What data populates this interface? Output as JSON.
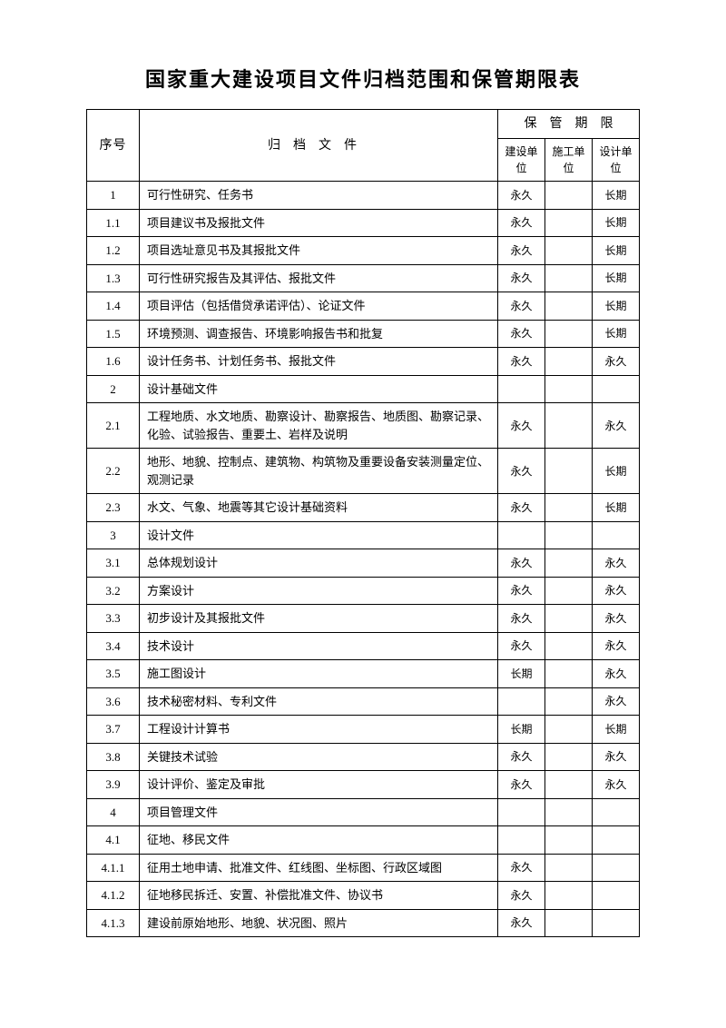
{
  "title": "国家重大建设项目文件归档范围和保管期限表",
  "header": {
    "seq": "序号",
    "doc": "归档文件",
    "period": "保　管　期　限",
    "unit1": "建设单位",
    "unit2": "施工单位",
    "unit3": "设计单位"
  },
  "rows": [
    {
      "seq": "1",
      "doc": "可行性研究、任务书",
      "p1": "永久",
      "p2": "",
      "p3": "长期"
    },
    {
      "seq": "1.1",
      "doc": "项目建议书及报批文件",
      "p1": "永久",
      "p2": "",
      "p3": "长期"
    },
    {
      "seq": "1.2",
      "doc": "项目选址意见书及其报批文件",
      "p1": "永久",
      "p2": "",
      "p3": "长期"
    },
    {
      "seq": "1.3",
      "doc": "可行性研究报告及其评估、报批文件",
      "p1": "永久",
      "p2": "",
      "p3": "长期"
    },
    {
      "seq": "1.4",
      "doc": "项目评估（包括借贷承诺评估）、论证文件",
      "p1": "永久",
      "p2": "",
      "p3": "长期"
    },
    {
      "seq": "1.5",
      "doc": "环境预测、调查报告、环境影响报告书和批复",
      "p1": "永久",
      "p2": "",
      "p3": "长期"
    },
    {
      "seq": "1.6",
      "doc": "设计任务书、计划任务书、报批文件",
      "p1": "永久",
      "p2": "",
      "p3": "永久"
    },
    {
      "seq": "2",
      "doc": "设计基础文件",
      "p1": "",
      "p2": "",
      "p3": ""
    },
    {
      "seq": "2.1",
      "doc": "工程地质、水文地质、勘察设计、勘察报告、地质图、勘察记录、化验、试验报告、重要土、岩样及说明",
      "p1": "永久",
      "p2": "",
      "p3": "永久"
    },
    {
      "seq": "2.2",
      "doc": "地形、地貌、控制点、建筑物、构筑物及重要设备安装测量定位、观测记录",
      "p1": "永久",
      "p2": "",
      "p3": "长期"
    },
    {
      "seq": "2.3",
      "doc": "水文、气象、地震等其它设计基础资料",
      "p1": "永久",
      "p2": "",
      "p3": "长期"
    },
    {
      "seq": "3",
      "doc": "设计文件",
      "p1": "",
      "p2": "",
      "p3": ""
    },
    {
      "seq": "3.1",
      "doc": "总体规划设计",
      "p1": "永久",
      "p2": "",
      "p3": "永久"
    },
    {
      "seq": "3.2",
      "doc": "方案设计",
      "p1": "永久",
      "p2": "",
      "p3": "永久"
    },
    {
      "seq": "3.3",
      "doc": "初步设计及其报批文件",
      "p1": "永久",
      "p2": "",
      "p3": "永久"
    },
    {
      "seq": "3.4",
      "doc": "技术设计",
      "p1": "永久",
      "p2": "",
      "p3": "永久"
    },
    {
      "seq": "3.5",
      "doc": "施工图设计",
      "p1": "长期",
      "p2": "",
      "p3": "永久"
    },
    {
      "seq": "3.6",
      "doc": "技术秘密材料、专利文件",
      "p1": "",
      "p2": "",
      "p3": "永久"
    },
    {
      "seq": "3.7",
      "doc": "工程设计计算书",
      "p1": "长期",
      "p2": "",
      "p3": "长期"
    },
    {
      "seq": "3.8",
      "doc": "关键技术试验",
      "p1": "永久",
      "p2": "",
      "p3": "永久"
    },
    {
      "seq": "3.9",
      "doc": "设计评价、鉴定及审批",
      "p1": "永久",
      "p2": "",
      "p3": "永久"
    },
    {
      "seq": "4",
      "doc": "项目管理文件",
      "p1": "",
      "p2": "",
      "p3": ""
    },
    {
      "seq": "4.1",
      "doc": "征地、移民文件",
      "p1": "",
      "p2": "",
      "p3": ""
    },
    {
      "seq": "4.1.1",
      "doc": "征用土地申请、批准文件、红线图、坐标图、行政区域图",
      "p1": "永久",
      "p2": "",
      "p3": ""
    },
    {
      "seq": "4.1.2",
      "doc": "征地移民拆迁、安置、补偿批准文件、协议书",
      "p1": "永久",
      "p2": "",
      "p3": ""
    },
    {
      "seq": "4.1.3",
      "doc": "建设前原始地形、地貌、状况图、照片",
      "p1": "永久",
      "p2": "",
      "p3": ""
    }
  ]
}
